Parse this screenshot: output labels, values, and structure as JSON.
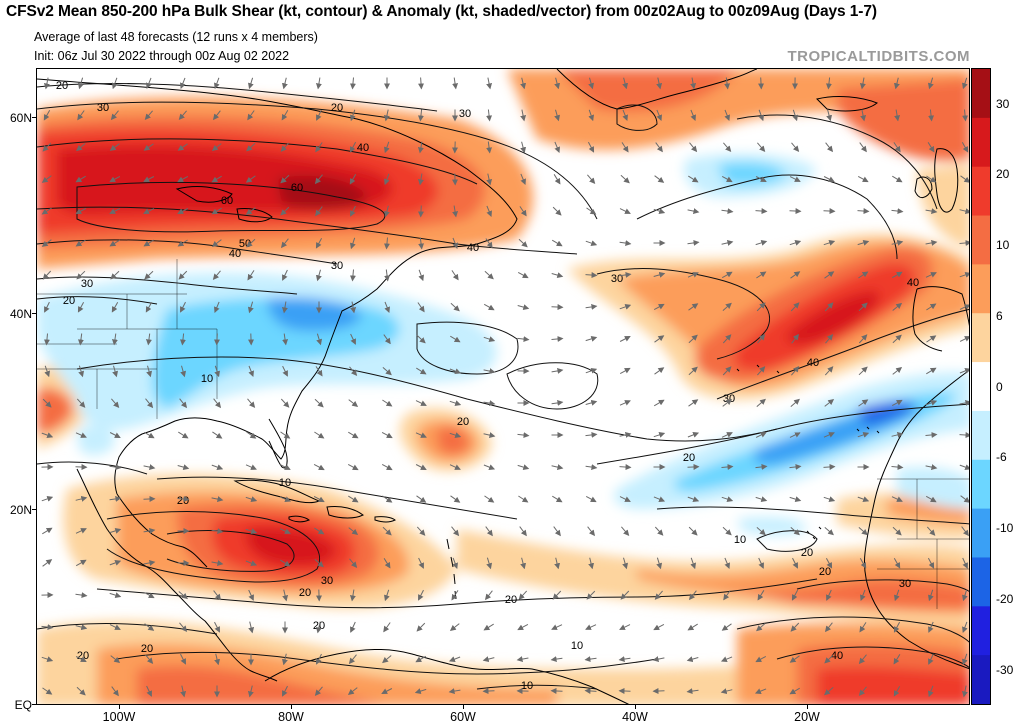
{
  "header": {
    "title": "CFSv2 Mean 850-200 hPa Bulk Shear (kt, contour) & Anomaly (kt, shaded/vector) from 00z02Aug to 00z09Aug (Days 1-7)",
    "subtitle": "Average of last 48 forecasts (12 runs x 4 members)",
    "init": "Init: 06z Jul 30 2022 through 00z Aug 02 2022",
    "brand": "TROPICALTIDBITS.COM"
  },
  "axes": {
    "lat_labels": [
      "60N",
      "40N",
      "20N",
      "EQ"
    ],
    "lon_labels": [
      "100W",
      "80W",
      "60W",
      "40W",
      "20W"
    ]
  },
  "colorbar": {
    "labels": [
      "30",
      "20",
      "10",
      "6",
      "0",
      "-6",
      "-10",
      "-20",
      "-30"
    ],
    "colors": [
      "#a50f15",
      "#d7191c",
      "#ef3b2c",
      "#f46d43",
      "#fc9d5a",
      "#fdd49e",
      "#ffffff",
      "#c6efff",
      "#6cd6ff",
      "#3aa0f5",
      "#1c64e6",
      "#2020e0",
      "#1a1ac0"
    ]
  },
  "contour_labels": [
    "20",
    "30",
    "20",
    "30",
    "40",
    "60",
    "60",
    "50",
    "40",
    "40",
    "30",
    "30",
    "20",
    "10",
    "20",
    "30",
    "40",
    "40",
    "30",
    "20",
    "20",
    "10",
    "20",
    "30",
    "20",
    "10",
    "10",
    "20",
    "20",
    "10",
    "20",
    "30",
    "40",
    "20",
    "20"
  ]
}
